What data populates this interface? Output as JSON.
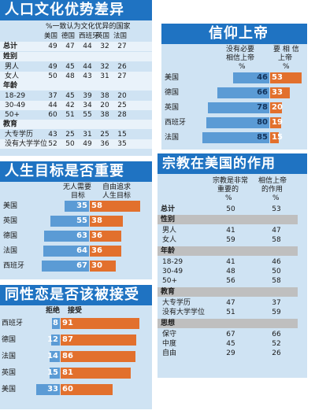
{
  "p1": {
    "title": "人口文化优势差异",
    "header": "%一致认为文化优异的国家",
    "cols": [
      "美国",
      "德国",
      "西班牙",
      "英国",
      "法国"
    ],
    "groups": [
      {
        "label": "总计",
        "rows": [
          {
            "label": "",
            "vals": [
              "49",
              "47",
              "44",
              "32",
              "27"
            ]
          }
        ]
      },
      {
        "label": "姓别",
        "rows": [
          {
            "label": "男人",
            "vals": [
              "49",
              "45",
              "44",
              "32",
              "26"
            ]
          },
          {
            "label": "女人",
            "vals": [
              "50",
              "48",
              "43",
              "31",
              "27"
            ]
          }
        ]
      },
      {
        "label": "年龄",
        "rows": [
          {
            "label": "18-29",
            "vals": [
              "37",
              "45",
              "39",
              "38",
              "20"
            ]
          },
          {
            "label": "30-49",
            "vals": [
              "44",
              "42",
              "34",
              "20",
              "25"
            ]
          },
          {
            "label": "50+",
            "vals": [
              "60",
              "51",
              "55",
              "38",
              "28"
            ]
          }
        ]
      },
      {
        "label": "教育",
        "rows": [
          {
            "label": "大专学历",
            "vals": [
              "43",
              "25",
              "31",
              "25",
              "15"
            ]
          },
          {
            "label": "没有大学学位",
            "vals": [
              "52",
              "50",
              "49",
              "36",
              "35"
            ]
          }
        ]
      }
    ]
  },
  "p2": {
    "title": "信仰上帝",
    "col1": [
      "没有必要",
      "相信上帝"
    ],
    "col2": [
      "要 相 信",
      "上帝"
    ],
    "pct": [
      "%",
      "%"
    ],
    "rows": [
      {
        "country": "美国",
        "a": "46",
        "b": "53"
      },
      {
        "country": "德国",
        "a": "66",
        "b": "33"
      },
      {
        "country": "英国",
        "a": "78",
        "b": "20"
      },
      {
        "country": "西班牙",
        "a": "80",
        "b": "19"
      },
      {
        "country": "法国",
        "a": "85",
        "b": "15"
      }
    ]
  },
  "p3": {
    "title": "人生目标是否重要",
    "col1": [
      "无人需要",
      "目标"
    ],
    "col2": [
      "自由追求",
      "人生目标"
    ],
    "rows": [
      {
        "country": "美国",
        "a": "35",
        "b": "58"
      },
      {
        "country": "英国",
        "a": "55",
        "b": "38"
      },
      {
        "country": "德国",
        "a": "63",
        "b": "36"
      },
      {
        "country": "法国",
        "a": "64",
        "b": "36"
      },
      {
        "country": "西班牙",
        "a": "67",
        "b": "30"
      }
    ]
  },
  "p4": {
    "title": "宗教在美国的作用",
    "col1": [
      "宗教是非常",
      "重要的",
      "%"
    ],
    "col2": [
      "相信上帝",
      "的作用",
      "%"
    ],
    "groups": [
      {
        "label": "总计",
        "rows": [
          {
            "label": "",
            "a": "50",
            "b": "53"
          }
        ]
      },
      {
        "label": "性别",
        "rows": [
          {
            "label": "男人",
            "a": "41",
            "b": "47"
          },
          {
            "label": "女人",
            "a": "59",
            "b": "58"
          }
        ]
      },
      {
        "label": "年龄",
        "rows": [
          {
            "label": "18-29",
            "a": "41",
            "b": "46"
          },
          {
            "label": "30-49",
            "a": "48",
            "b": "50"
          },
          {
            "label": "50+",
            "a": "56",
            "b": "58"
          }
        ]
      },
      {
        "label": "教育",
        "rows": [
          {
            "label": "大专学历",
            "a": "47",
            "b": "37"
          },
          {
            "label": "没有大学学位",
            "a": "51",
            "b": "59"
          }
        ]
      },
      {
        "label": "思想",
        "rows": [
          {
            "label": "保守",
            "a": "67",
            "b": "66"
          },
          {
            "label": "中度",
            "a": "45",
            "b": "52"
          },
          {
            "label": "自由",
            "a": "29",
            "b": "26"
          }
        ]
      }
    ]
  },
  "p5": {
    "title": "同性恋是否该被接受",
    "col1": "拒绝",
    "col2": "接受",
    "rows": [
      {
        "country": "西班牙",
        "a": "8",
        "b": "91"
      },
      {
        "country": "德国",
        "a": "12",
        "b": "87"
      },
      {
        "country": "法国",
        "a": "14",
        "b": "86"
      },
      {
        "country": "英国",
        "a": "15",
        "b": "81"
      },
      {
        "country": "美国",
        "a": "33",
        "b": "60"
      }
    ]
  },
  "colors": {
    "title_bg": "#1f73c2",
    "panel_bg": "#cfe3f3",
    "blue": "#5b9bd5",
    "orange": "#e2702d",
    "gray": "#bfbfbf"
  },
  "chart_data": [
    {
      "type": "table",
      "title": "人口文化优势差异",
      "header": "%一致认为文化优异的国家",
      "columns": [
        "美国",
        "德国",
        "西班牙",
        "英国",
        "法国"
      ],
      "rows": [
        [
          "总计",
          49,
          47,
          44,
          32,
          27
        ],
        [
          "男人",
          49,
          45,
          44,
          32,
          26
        ],
        [
          "女人",
          50,
          48,
          43,
          31,
          27
        ],
        [
          "18-29",
          37,
          45,
          39,
          38,
          20
        ],
        [
          "30-49",
          44,
          42,
          34,
          20,
          25
        ],
        [
          "50+",
          60,
          51,
          55,
          38,
          28
        ],
        [
          "大专学历",
          43,
          25,
          31,
          25,
          15
        ],
        [
          "没有大学学位",
          52,
          50,
          49,
          36,
          35
        ]
      ]
    },
    {
      "type": "bar",
      "title": "信仰上帝",
      "categories": [
        "美国",
        "德国",
        "英国",
        "西班牙",
        "法国"
      ],
      "series": [
        {
          "name": "没有必要相信上帝",
          "values": [
            46,
            66,
            78,
            80,
            85
          ]
        },
        {
          "name": "要相信上帝",
          "values": [
            53,
            33,
            20,
            19,
            15
          ]
        }
      ]
    },
    {
      "type": "bar",
      "title": "人生目标是否重要",
      "categories": [
        "美国",
        "英国",
        "德国",
        "法国",
        "西班牙"
      ],
      "series": [
        {
          "name": "无人需要目标",
          "values": [
            35,
            55,
            63,
            64,
            67
          ]
        },
        {
          "name": "自由追求人生目标",
          "values": [
            58,
            38,
            36,
            36,
            30
          ]
        }
      ]
    },
    {
      "type": "table",
      "title": "宗教在美国的作用",
      "columns": [
        "宗教是非常重要的%",
        "相信上帝的作用%"
      ],
      "rows": [
        [
          "总计",
          50,
          53
        ],
        [
          "男人",
          41,
          47
        ],
        [
          "女人",
          59,
          58
        ],
        [
          "18-29",
          41,
          46
        ],
        [
          "30-49",
          48,
          50
        ],
        [
          "50+",
          56,
          58
        ],
        [
          "大专学历",
          47,
          37
        ],
        [
          "没有大学学位",
          51,
          59
        ],
        [
          "保守",
          67,
          66
        ],
        [
          "中度",
          45,
          52
        ],
        [
          "自由",
          29,
          26
        ]
      ]
    },
    {
      "type": "bar",
      "title": "同性恋是否该被接受",
      "categories": [
        "西班牙",
        "德国",
        "法国",
        "英国",
        "美国"
      ],
      "series": [
        {
          "name": "拒绝",
          "values": [
            8,
            12,
            14,
            15,
            33
          ]
        },
        {
          "name": "接受",
          "values": [
            91,
            87,
            86,
            81,
            60
          ]
        }
      ]
    }
  ]
}
